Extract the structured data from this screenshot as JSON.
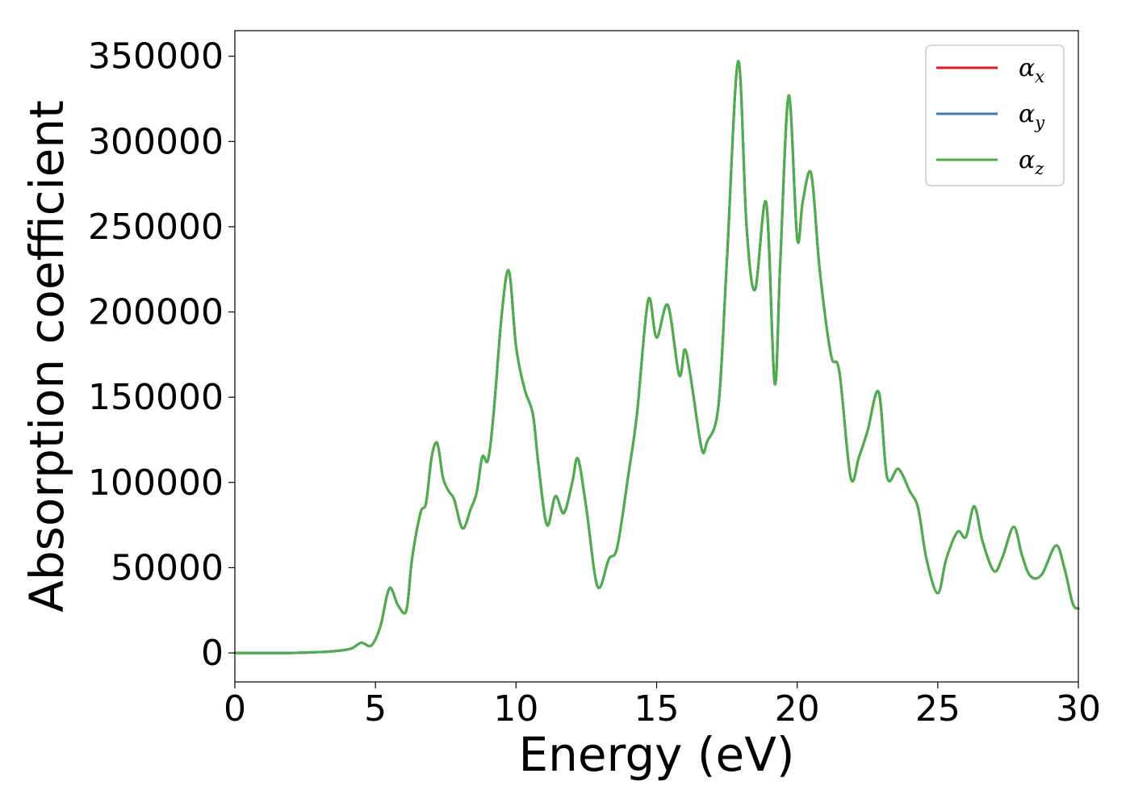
{
  "chart_data": {
    "type": "line",
    "xlabel": "Energy (eV)",
    "ylabel": "Absorption coefficient",
    "xlim": [
      0,
      30
    ],
    "ylim": [
      -17000,
      365000
    ],
    "xticks": [
      0,
      5,
      10,
      15,
      20,
      25,
      30
    ],
    "yticks": [
      0,
      50000,
      100000,
      150000,
      200000,
      250000,
      300000,
      350000
    ],
    "grid": false,
    "legend_position": "top-right",
    "x": [
      0,
      1,
      2,
      3,
      3.5,
      4,
      4.2,
      4.5,
      4.8,
      5.0,
      5.2,
      5.5,
      5.8,
      6.1,
      6.3,
      6.6,
      6.8,
      7.0,
      7.2,
      7.4,
      7.6,
      7.8,
      8.1,
      8.4,
      8.6,
      8.8,
      9.0,
      9.2,
      9.5,
      9.75,
      10.0,
      10.3,
      10.6,
      10.8,
      11.1,
      11.4,
      11.7,
      12.0,
      12.2,
      12.5,
      12.9,
      13.3,
      13.6,
      14.0,
      14.3,
      14.7,
      15.0,
      15.4,
      15.8,
      16.0,
      16.2,
      16.6,
      16.8,
      17.2,
      17.5,
      17.9,
      18.2,
      18.5,
      18.9,
      19.2,
      19.4,
      19.7,
      20.0,
      20.2,
      20.5,
      20.8,
      21.2,
      21.5,
      21.9,
      22.2,
      22.5,
      22.9,
      23.2,
      23.6,
      24.0,
      24.3,
      24.6,
      25.0,
      25.3,
      25.7,
      26.0,
      26.3,
      26.6,
      27.0,
      27.3,
      27.7,
      28.0,
      28.3,
      28.7,
      29.2,
      29.5,
      29.8,
      30.0
    ],
    "series": [
      {
        "name": "α_x",
        "color": "#e41a1c",
        "values": [
          0,
          0,
          0,
          500,
          1000,
          2000,
          3000,
          6000,
          4000,
          8000,
          17000,
          38000,
          28000,
          25000,
          55000,
          82000,
          88000,
          115000,
          123000,
          103000,
          95000,
          90000,
          73000,
          85000,
          94000,
          115000,
          113000,
          140000,
          200000,
          224000,
          180000,
          155000,
          140000,
          110000,
          75000,
          92000,
          82000,
          100000,
          114000,
          85000,
          39000,
          55000,
          62000,
          105000,
          140000,
          207000,
          185000,
          204000,
          163000,
          178000,
          163000,
          120000,
          124000,
          145000,
          230000,
          347000,
          250000,
          213000,
          264000,
          158000,
          230000,
          327000,
          243000,
          265000,
          281000,
          225000,
          175000,
          165000,
          103000,
          115000,
          130000,
          153000,
          103000,
          108000,
          95000,
          85000,
          55000,
          35000,
          55000,
          71000,
          68000,
          86000,
          65000,
          48000,
          56000,
          74000,
          57000,
          45000,
          46000,
          63000,
          50000,
          29000,
          26000
        ]
      },
      {
        "name": "α_y",
        "color": "#377eb8",
        "values": [
          0,
          0,
          0,
          500,
          1000,
          2000,
          3000,
          6000,
          4000,
          8000,
          17000,
          38000,
          28000,
          25000,
          55000,
          82000,
          88000,
          115000,
          123000,
          103000,
          95000,
          90000,
          73000,
          85000,
          94000,
          115000,
          113000,
          140000,
          200000,
          224000,
          180000,
          155000,
          140000,
          110000,
          75000,
          92000,
          82000,
          100000,
          114000,
          85000,
          39000,
          55000,
          62000,
          105000,
          140000,
          207000,
          185000,
          204000,
          163000,
          178000,
          163000,
          120000,
          124000,
          145000,
          230000,
          347000,
          250000,
          213000,
          264000,
          158000,
          230000,
          327000,
          243000,
          265000,
          281000,
          225000,
          175000,
          165000,
          103000,
          115000,
          130000,
          153000,
          103000,
          108000,
          95000,
          85000,
          55000,
          35000,
          55000,
          71000,
          68000,
          86000,
          65000,
          48000,
          56000,
          74000,
          57000,
          45000,
          46000,
          63000,
          50000,
          29000,
          26000
        ]
      },
      {
        "name": "α_z",
        "color": "#4daf4a",
        "values": [
          0,
          0,
          0,
          500,
          1000,
          2000,
          3000,
          6000,
          4000,
          8000,
          17000,
          38000,
          28000,
          25000,
          55000,
          82000,
          88000,
          115000,
          123000,
          103000,
          95000,
          90000,
          73000,
          85000,
          94000,
          115000,
          113000,
          140000,
          200000,
          224000,
          180000,
          155000,
          140000,
          110000,
          75000,
          92000,
          82000,
          100000,
          114000,
          85000,
          39000,
          55000,
          62000,
          105000,
          140000,
          207000,
          185000,
          204000,
          163000,
          178000,
          163000,
          120000,
          124000,
          145000,
          230000,
          347000,
          250000,
          213000,
          264000,
          158000,
          230000,
          327000,
          243000,
          265000,
          281000,
          225000,
          175000,
          165000,
          103000,
          115000,
          130000,
          153000,
          103000,
          108000,
          95000,
          85000,
          55000,
          35000,
          55000,
          71000,
          68000,
          86000,
          65000,
          48000,
          56000,
          74000,
          57000,
          45000,
          46000,
          63000,
          50000,
          29000,
          26000
        ]
      }
    ],
    "legend": [
      {
        "symbol": "α",
        "sub": "x",
        "color": "#e41a1c"
      },
      {
        "symbol": "α",
        "sub": "y",
        "color": "#377eb8"
      },
      {
        "symbol": "α",
        "sub": "z",
        "color": "#4daf4a"
      }
    ]
  }
}
